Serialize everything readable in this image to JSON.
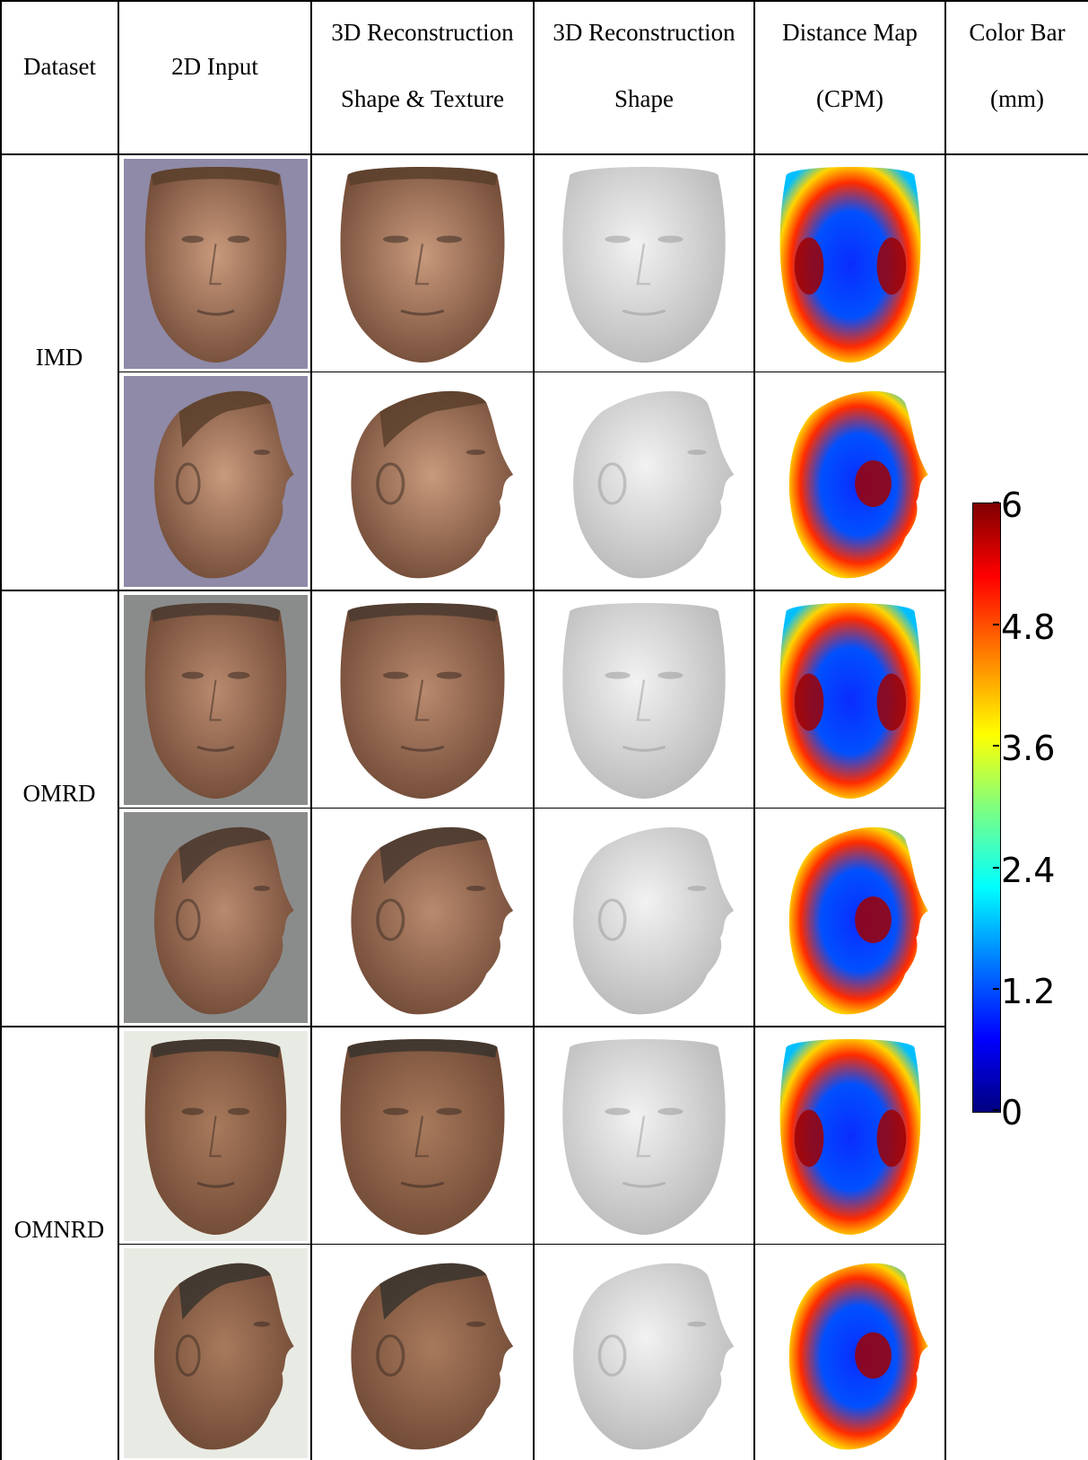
{
  "header": {
    "dataset": "Dataset",
    "input": "2D Input",
    "recon_tex": [
      "3D Reconstruction",
      "Shape & Texture"
    ],
    "recon_shape": [
      "3D Reconstruction",
      "Shape"
    ],
    "distance": [
      "Distance Map",
      "(CPM)"
    ],
    "colorbar": [
      "Color Bar",
      "(mm)"
    ]
  },
  "datasets": [
    {
      "label": "IMD",
      "input_bg": "#8e8aa8",
      "skin": "#c99a7c",
      "hair": "#5b3f2c"
    },
    {
      "label": "OMRD",
      "input_bg": "#8a8c8c",
      "skin": "#b98a6e",
      "hair": "#4a3a30"
    },
    {
      "label": "OMNRD",
      "input_bg": "#e8ebe3",
      "skin": "#a87a5c",
      "hair": "#3a342e"
    }
  ],
  "image_cells": {
    "input": "2D Input image",
    "recon_tex": "Shape & Texture reconstruction",
    "recon_shape": "Shape reconstruction",
    "distance": "Distance Map"
  },
  "colorbar": {
    "ticks": [
      "6",
      "4.8",
      "3.6",
      "2.4",
      "1.2",
      "0"
    ],
    "min": 0,
    "max": 6,
    "colors": [
      "#00007f",
      "#0000ff",
      "#007fff",
      "#00ffff",
      "#7fff7f",
      "#ffff00",
      "#ff7f00",
      "#ff0000",
      "#7f0000"
    ]
  }
}
